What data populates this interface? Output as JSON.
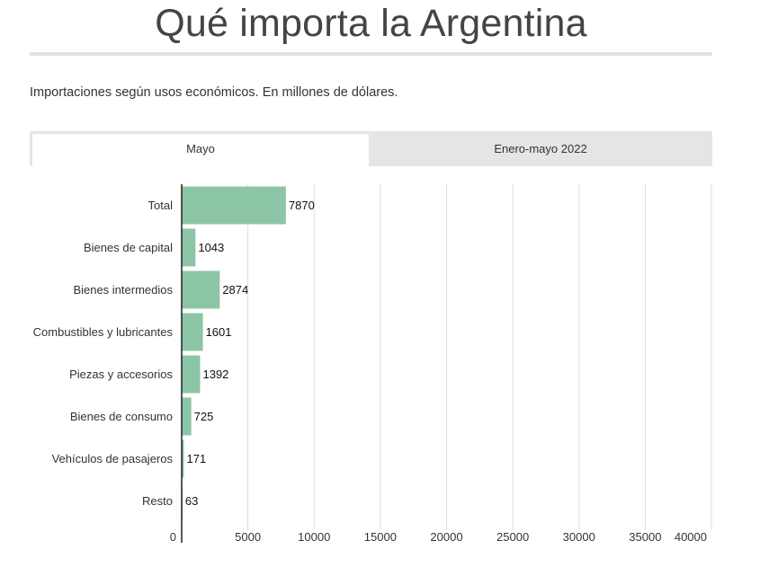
{
  "title": "Qué importa la Argentina",
  "subtitle": "Importaciones según usos económicos. En millones de dólares.",
  "tabs": [
    {
      "label": "Mayo",
      "active": true
    },
    {
      "label": "Enero-mayo 2022",
      "active": false
    }
  ],
  "colors": {
    "bar": "#8dc5a7",
    "grid": "#dddddd",
    "axis": "#222222"
  },
  "chart_data": {
    "type": "bar",
    "orientation": "horizontal",
    "categories": [
      "Total",
      "Bienes de capital",
      "Bienes intermedios",
      "Combustibles y lubricantes",
      "Piezas y accesorios",
      "Bienes de consumo",
      "Vehículos de pasajeros",
      "Resto"
    ],
    "values": [
      7870,
      1043,
      2874,
      1601,
      1392,
      725,
      171,
      63
    ],
    "xlim": [
      0,
      40000
    ],
    "xticks": [
      0,
      5000,
      10000,
      15000,
      20000,
      25000,
      30000,
      35000,
      40000
    ],
    "grid": true,
    "legend": "none"
  }
}
